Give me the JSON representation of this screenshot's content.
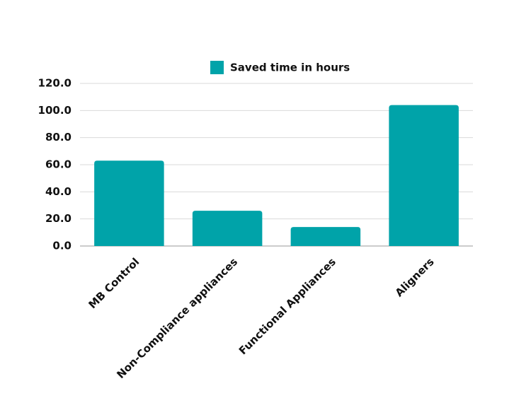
{
  "chart_data": {
    "type": "bar",
    "categories": [
      "MB Control",
      "Non-Compliance appliances",
      "Functional Appliances",
      "Aligners"
    ],
    "series": [
      {
        "name": "Saved time in hours",
        "color": "#00a3a9",
        "values": [
          63,
          26,
          14,
          104
        ]
      }
    ],
    "ylim": [
      0,
      120
    ],
    "yticks": [
      {
        "value": 0,
        "label": "0.0"
      },
      {
        "value": 20,
        "label": "20.0"
      },
      {
        "value": 40,
        "label": "40.0"
      },
      {
        "value": 60,
        "label": "60.0"
      },
      {
        "value": 80,
        "label": "80.0"
      },
      {
        "value": 100,
        "label": "100.0"
      },
      {
        "value": 120,
        "label": "120.0"
      }
    ],
    "grid": true,
    "legend": "top"
  }
}
